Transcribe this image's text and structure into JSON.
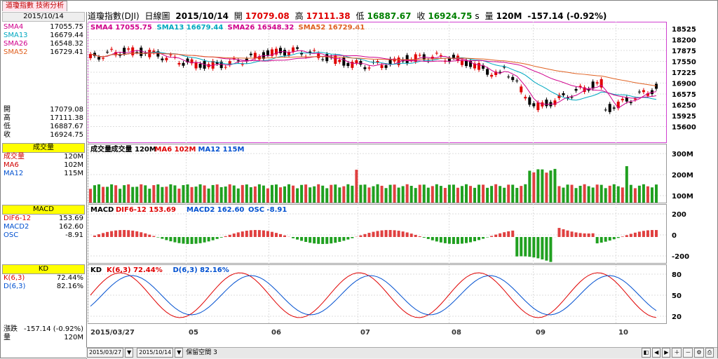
{
  "window": {
    "tab_label": "道瓊指數 技術分析",
    "date": "2015/10/14"
  },
  "header": {
    "name": "道瓊指數(DJI)",
    "interval": "日線圖",
    "date": "2015/10/14",
    "open_label": "開",
    "open": "17079.08",
    "high_label": "高",
    "high": "17111.38",
    "low_label": "低",
    "low": "16887.67",
    "close_label": "收",
    "close": "16924.75",
    "s": "s",
    "vol_label": "量",
    "vol": "120M",
    "change": "-157.14 (-0.92%)"
  },
  "left": {
    "sma": [
      {
        "k": "SMA4",
        "v": "17055.75",
        "c": "#d0008c"
      },
      {
        "k": "SMA13",
        "v": "16679.44",
        "c": "#00a8c0"
      },
      {
        "k": "SMA26",
        "v": "16548.32",
        "c": "#d0008c"
      },
      {
        "k": "SMA52",
        "v": "16729.41",
        "c": "#e06020"
      }
    ],
    "ohlc": [
      {
        "k": "開",
        "v": "17079.08"
      },
      {
        "k": "高",
        "v": "17111.38"
      },
      {
        "k": "低",
        "v": "16887.67"
      },
      {
        "k": "收",
        "v": "16924.75"
      }
    ],
    "vol_title": "成交量",
    "vol": [
      {
        "k": "成交量",
        "v": "120M",
        "c": "#d00000"
      },
      {
        "k": "MA6",
        "v": "102M",
        "c": "#d00000"
      },
      {
        "k": "MA12",
        "v": "115M",
        "c": "#0050d0"
      }
    ],
    "macd_title": "MACD",
    "macd": [
      {
        "k": "DIF6-12",
        "v": "153.69",
        "c": "#e00000"
      },
      {
        "k": "MACD2",
        "v": "162.60",
        "c": "#0050d0"
      },
      {
        "k": "OSC",
        "v": "-8.91",
        "c": "#0050d0"
      }
    ],
    "kd_title": "KD",
    "kd": [
      {
        "k": "K(6,3)",
        "v": "72.44%",
        "c": "#e00000"
      },
      {
        "k": "D(6,3)",
        "v": "82.16%",
        "c": "#0050d0"
      }
    ],
    "change_label": "漲跌",
    "change": "-157.14 (-0.92%)",
    "vol_label": "量",
    "vol_v": "120M"
  },
  "panels": {
    "price": {
      "legend": [
        {
          "t": "SMA4 17055.75",
          "c": "#d0008c"
        },
        {
          "t": "SMA13 16679.44",
          "c": "#00a8c0"
        },
        {
          "t": "SMA26 16548.32",
          "c": "#d0008c"
        },
        {
          "t": "SMA52 16729.41",
          "c": "#e06020"
        }
      ],
      "yticks": [
        "18525",
        "18200",
        "17875",
        "17550",
        "17225",
        "16900",
        "16575",
        "16250",
        "15925",
        "15600"
      ]
    },
    "volume": {
      "legend": [
        {
          "t": "成交量",
          "c": "#000"
        },
        {
          "t": "成交量 120M",
          "c": "#000"
        },
        {
          "t": "MA6 102M",
          "c": "#e00000"
        },
        {
          "t": "MA12 115M",
          "c": "#0050d0"
        }
      ],
      "yticks": [
        "300M",
        "200M",
        "100M"
      ]
    },
    "macd": {
      "legend": [
        {
          "t": "MACD",
          "c": "#000"
        },
        {
          "t": "DIF6-12 153.69",
          "c": "#e00000"
        },
        {
          "t": "MACD2 162.60",
          "c": "#0050d0"
        },
        {
          "t": "OSC -8.91",
          "c": "#0050d0"
        }
      ],
      "yticks": [
        "200",
        "0",
        "-200"
      ]
    },
    "kd": {
      "legend": [
        {
          "t": "KD",
          "c": "#000"
        },
        {
          "t": "K(6,3) 72.44%",
          "c": "#e00000"
        },
        {
          "t": "D(6,3) 82.16%",
          "c": "#0050d0"
        }
      ],
      "yticks": [
        "80",
        "50",
        "20"
      ]
    }
  },
  "xaxis": {
    "labels": [
      "2015/03/27",
      "05",
      "06",
      "07",
      "08",
      "09",
      "10"
    ]
  },
  "footer": {
    "start": "2015/03/27",
    "end": "2015/10/14",
    "reserve": "保留空間",
    "reserve_n": "3"
  }
}
